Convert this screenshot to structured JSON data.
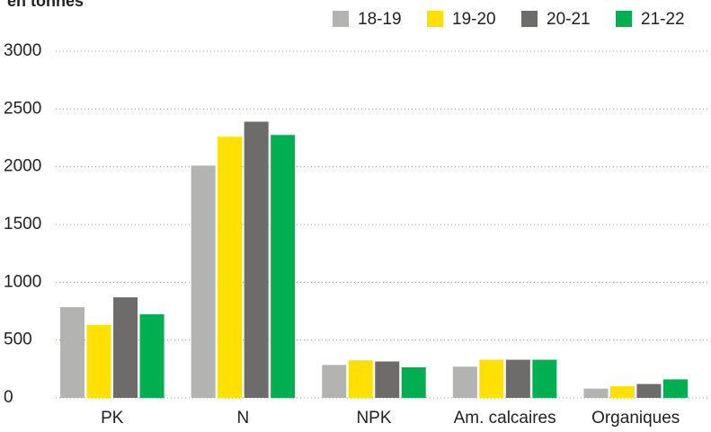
{
  "chart_data": {
    "type": "bar",
    "title": "en tonnes",
    "categories": [
      "PK",
      "N",
      "NPK",
      "Am. calcaires",
      "Organiques"
    ],
    "series": [
      {
        "name": "18-19",
        "color": "#b3b3b1",
        "values": [
          785,
          2010,
          285,
          270,
          80
        ]
      },
      {
        "name": "19-20",
        "color": "#ffe000",
        "values": [
          630,
          2260,
          325,
          330,
          100
        ]
      },
      {
        "name": "20-21",
        "color": "#6e6c6b",
        "values": [
          870,
          2390,
          315,
          330,
          120
        ]
      },
      {
        "name": "21-22",
        "color": "#00b050",
        "values": [
          723,
          2275,
          265,
          330,
          160
        ]
      }
    ],
    "ylim": [
      0,
      3000
    ],
    "yticks": [
      0,
      500,
      1000,
      1500,
      2000,
      2500,
      3000
    ],
    "grid": true,
    "legend": "top-right"
  }
}
